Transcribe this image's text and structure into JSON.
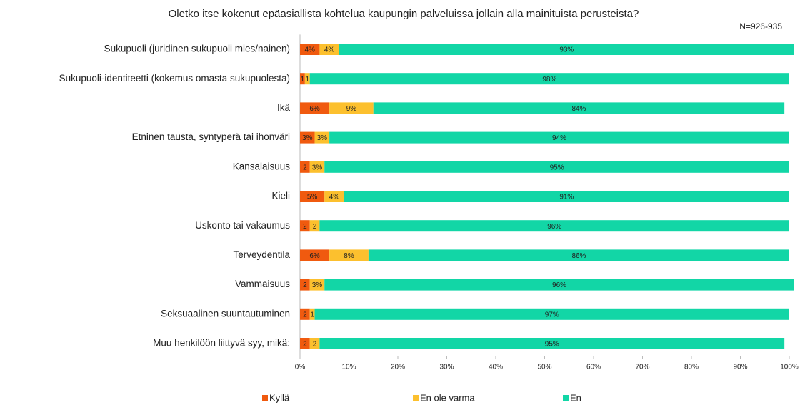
{
  "chart_data": {
    "type": "stacked_bar_horizontal",
    "title": "Oletko itse kokenut epäasiallista kohtelua kaupungin palveluissa jollain alla mainituista perusteista?",
    "subtitle": "N=926-935",
    "categories": [
      "Sukupuoli (juridinen sukupuoli mies/nainen)",
      "Sukupuoli-identiteetti (kokemus omasta sukupuolesta)",
      "Ikä",
      "Etninen tausta, syntyperä tai ihonväri",
      "Kansalaisuus",
      "Kieli",
      "Uskonto tai vakaumus",
      "Terveydentila",
      "Vammaisuus",
      "Seksuaalinen suuntautuminen",
      "Muu henkilöön liittyvä syy, mikä:"
    ],
    "series": [
      {
        "name": "Kyllä",
        "color": "#f05a0f",
        "values": [
          4,
          1,
          6,
          3,
          2,
          5,
          2,
          6,
          2,
          2,
          2
        ],
        "value_labels": [
          "4%",
          "1",
          "6%",
          "3%",
          "2",
          "5%",
          "2",
          "6%",
          "2",
          "2",
          "2"
        ]
      },
      {
        "name": "En ole varma",
        "color": "#fcc02e",
        "values": [
          4,
          1,
          9,
          3,
          3,
          4,
          2,
          8,
          3,
          1,
          2
        ],
        "value_labels": [
          "4%",
          "1",
          "9%",
          "3%",
          "3%",
          "4%",
          "2",
          "8%",
          "3%",
          "1",
          "2"
        ]
      },
      {
        "name": "En",
        "color": "#12d6a6",
        "values": [
          93,
          98,
          84,
          94,
          95,
          91,
          96,
          86,
          96,
          97,
          95
        ],
        "value_labels": [
          "93%",
          "98%",
          "84%",
          "94%",
          "95%",
          "91%",
          "96%",
          "86%",
          "96%",
          "97%",
          "95%"
        ]
      }
    ],
    "xlim": [
      0,
      100
    ],
    "xticks": [
      {
        "value": 0,
        "label": "0%"
      },
      {
        "value": 10,
        "label": "10%"
      },
      {
        "value": 20,
        "label": "20%"
      },
      {
        "value": 30,
        "label": "30%"
      },
      {
        "value": 40,
        "label": "40%"
      },
      {
        "value": 50,
        "label": "50%"
      },
      {
        "value": 60,
        "label": "60%"
      },
      {
        "value": 70,
        "label": "70%"
      },
      {
        "value": 80,
        "label": "80%"
      },
      {
        "value": 90,
        "label": "90%"
      },
      {
        "value": 100,
        "label": "100%"
      }
    ],
    "legend": "bottom"
  }
}
